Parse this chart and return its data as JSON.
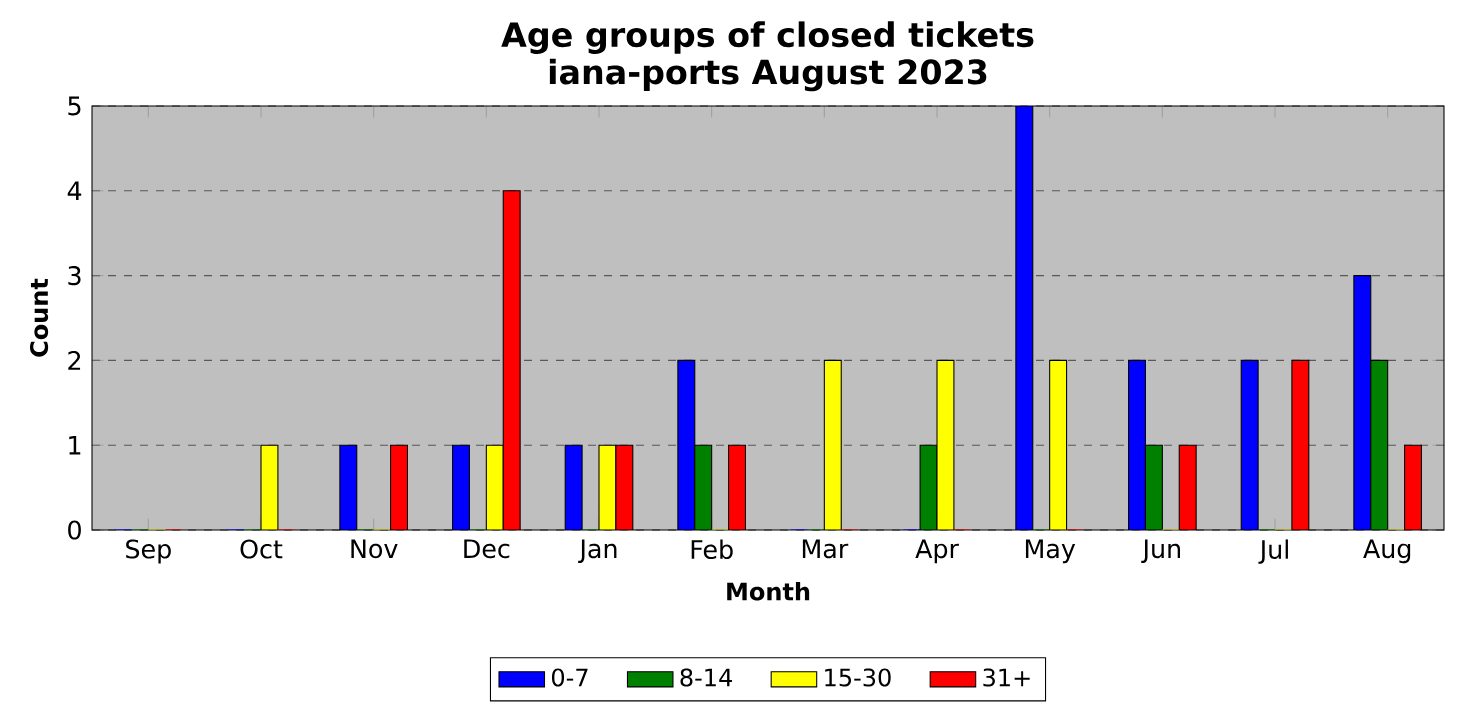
{
  "chart_data": {
    "type": "bar",
    "title": "Age groups of closed tickets",
    "subtitle": "iana-ports August 2023",
    "xlabel": "Month",
    "ylabel": "Count",
    "categories": [
      "Sep",
      "Oct",
      "Nov",
      "Dec",
      "Jan",
      "Feb",
      "Mar",
      "Apr",
      "May",
      "Jun",
      "Jul",
      "Aug"
    ],
    "series": [
      {
        "name": "0-7",
        "color": "#0000ff",
        "values": [
          0,
          0,
          1,
          1,
          1,
          2,
          0,
          0,
          5,
          2,
          2,
          3
        ]
      },
      {
        "name": "8-14",
        "color": "#008000",
        "values": [
          0,
          0,
          0,
          0,
          0,
          1,
          0,
          1,
          0,
          1,
          0,
          2
        ]
      },
      {
        "name": "15-30",
        "color": "#ffff00",
        "values": [
          0,
          1,
          0,
          1,
          1,
          0,
          2,
          2,
          2,
          0,
          0,
          0
        ]
      },
      {
        "name": "31+",
        "color": "#ff0000",
        "values": [
          0,
          0,
          1,
          4,
          1,
          1,
          0,
          0,
          0,
          1,
          2,
          1
        ]
      }
    ],
    "ylim": [
      0,
      5
    ],
    "yticks": [
      0,
      1,
      2,
      3,
      4,
      5
    ],
    "grid": "y",
    "legend": "bottom"
  }
}
